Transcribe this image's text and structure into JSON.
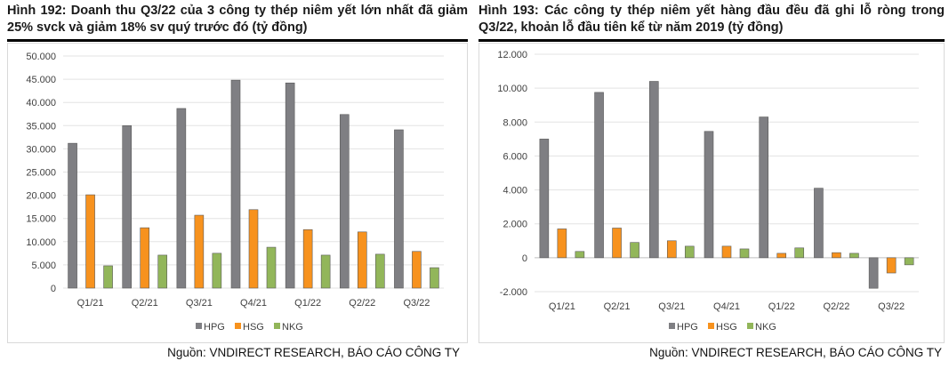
{
  "legend_colors": {
    "HPG": "#7f7f83",
    "HSG": "#f7921e",
    "NKG": "#92b65a"
  },
  "chart_data": [
    {
      "type": "bar",
      "title": "Hình 192: Doanh thu Q3/22 của 3 công ty thép niêm yết lớn nhất đã giảm 25% svck và giảm 18% sv quý trước đó (tỷ đồng)",
      "source": "Nguồn: VNDIRECT RESEARCH, BÁO CÁO CÔNG TY",
      "categories": [
        "Q1/21",
        "Q2/21",
        "Q3/21",
        "Q4/21",
        "Q1/22",
        "Q2/22",
        "Q3/22"
      ],
      "series": [
        {
          "name": "HPG",
          "values": [
            31200,
            35000,
            38700,
            44800,
            44200,
            37400,
            34100
          ]
        },
        {
          "name": "HSG",
          "values": [
            20100,
            13000,
            15700,
            16900,
            12600,
            12100,
            7900
          ]
        },
        {
          "name": "NKG",
          "values": [
            4800,
            7100,
            7500,
            8800,
            7100,
            7300,
            4400
          ]
        }
      ],
      "ylim": [
        0,
        50000
      ],
      "yticks": [
        0,
        5000,
        10000,
        15000,
        20000,
        25000,
        30000,
        35000,
        40000,
        45000,
        50000
      ],
      "ytick_labels": [
        "0",
        "5.000",
        "10.000",
        "15.000",
        "20.000",
        "25.000",
        "30.000",
        "35.000",
        "40.000",
        "45.000",
        "50.000"
      ],
      "grid": true,
      "legend": "bottom"
    },
    {
      "type": "bar",
      "title": "Hình 193: Các công ty thép niêm yết hàng đầu đều đã ghi lỗ ròng trong Q3/22, khoản lỗ đầu tiên kể từ năm 2019 (tỷ đồng)",
      "source": "Nguồn: VNDIRECT RESEARCH, BÁO CÁO CÔNG TY",
      "categories": [
        "Q1/21",
        "Q2/21",
        "Q3/21",
        "Q4/21",
        "Q1/22",
        "Q2/22",
        "Q3/22"
      ],
      "series": [
        {
          "name": "HPG",
          "values": [
            7000,
            9750,
            10400,
            7450,
            8300,
            4100,
            -1800
          ]
        },
        {
          "name": "HSG",
          "values": [
            1700,
            1750,
            1000,
            680,
            260,
            300,
            -900
          ]
        },
        {
          "name": "NKG",
          "values": [
            370,
            900,
            680,
            520,
            580,
            260,
            -420
          ]
        }
      ],
      "ylim": [
        -2000,
        12000
      ],
      "yticks": [
        -2000,
        0,
        2000,
        4000,
        6000,
        8000,
        10000,
        12000
      ],
      "ytick_labels": [
        "-2.000",
        "0",
        "2.000",
        "4.000",
        "6.000",
        "8.000",
        "10.000",
        "12.000"
      ],
      "grid": true,
      "legend": "bottom"
    }
  ]
}
